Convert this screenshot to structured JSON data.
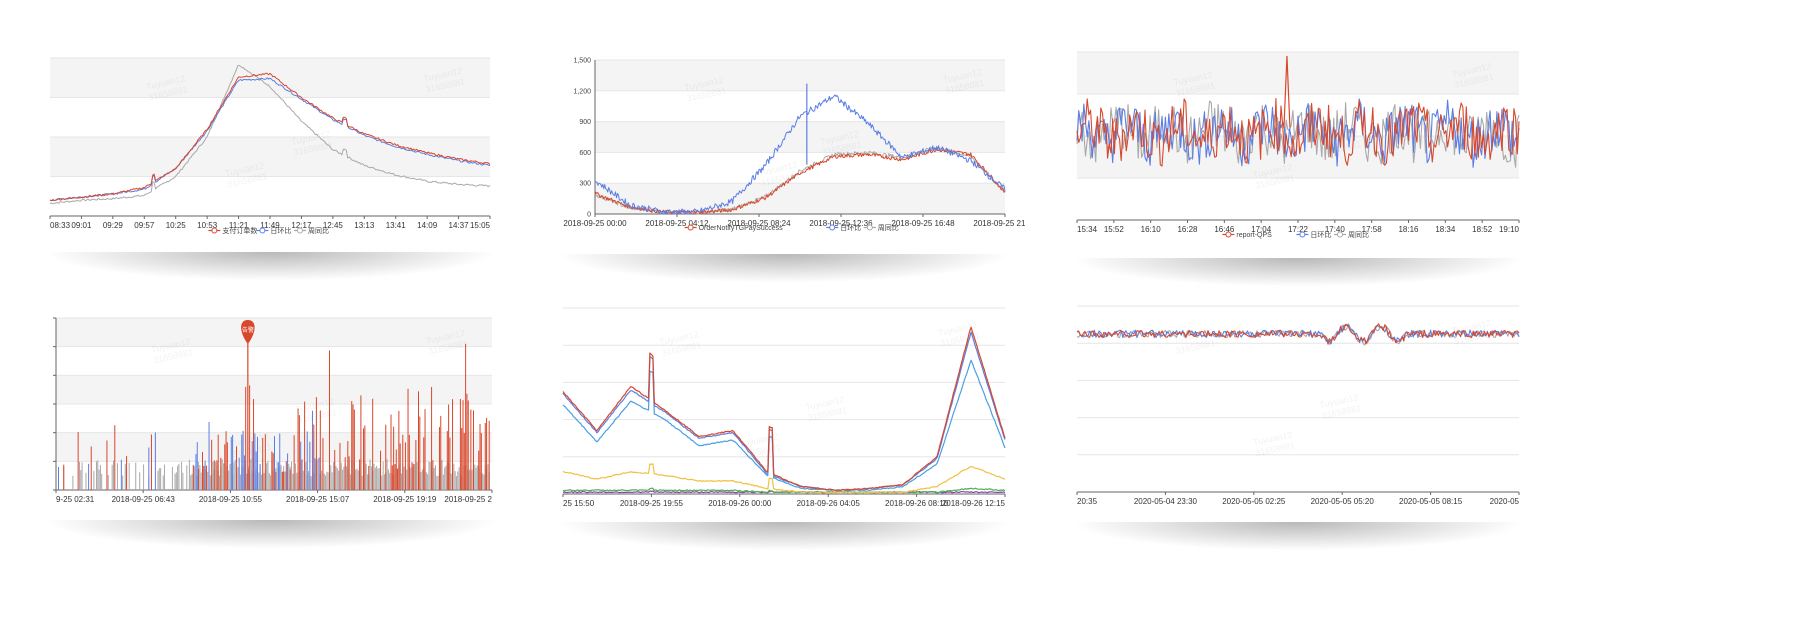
{
  "watermark": {
    "line1": "Tuyuan12",
    "line2": "31658881"
  },
  "series_colors": {
    "primary": "#d9472b",
    "week": "#5b7ee5",
    "day": "#a9a9a9",
    "extra_blue": "#4a9fe0",
    "extra_yellow": "#f0c040",
    "extra_green": "#4caf50",
    "extra_purple": "#8e44ad"
  },
  "chart_data": [
    {
      "type": "line",
      "title": "",
      "x_ticks": [
        "08:33",
        "09:01",
        "09:29",
        "09:57",
        "10:25",
        "10:53",
        "11:21",
        "11:49",
        "12:17",
        "12:45",
        "13:13",
        "13:41",
        "14:09",
        "14:37",
        "15:05"
      ],
      "legend": [
        "支付订单数",
        "日环比",
        "周同比"
      ],
      "y_ticks": [],
      "grid": "horizontal",
      "shape": "bell-peak-near-11:49",
      "series": [
        {
          "name": "支付订单数",
          "color": "primary",
          "level": [
            0.1,
            0.12,
            0.14,
            0.18,
            0.3,
            0.55,
            0.88,
            0.9,
            0.75,
            0.62,
            0.52,
            0.45,
            0.4,
            0.36,
            0.33
          ]
        },
        {
          "name": "日环比",
          "color": "week",
          "level": [
            0.1,
            0.12,
            0.14,
            0.17,
            0.3,
            0.54,
            0.86,
            0.87,
            0.74,
            0.61,
            0.51,
            0.44,
            0.39,
            0.35,
            0.32
          ]
        },
        {
          "name": "周同比",
          "color": "day",
          "level": [
            0.08,
            0.1,
            0.11,
            0.13,
            0.25,
            0.5,
            0.96,
            0.82,
            0.6,
            0.42,
            0.32,
            0.26,
            0.22,
            0.2,
            0.19
          ]
        }
      ]
    },
    {
      "type": "line",
      "title": "",
      "x_ticks": [
        "2018-09-25 00:00",
        "2018-09-25 04:12",
        "2018-09-25 08:24",
        "2018-09-25 12:36",
        "2018-09-25 16:48",
        "2018-09-25 21:00"
      ],
      "y_ticks": [
        "1,500",
        "1,200",
        "900",
        "600",
        "300",
        "0"
      ],
      "ylim": [
        0,
        1500
      ],
      "legend": [
        "OrderNotifyTGPaySuccess",
        "日环比",
        "周同比"
      ],
      "grid": "horizontal",
      "series": [
        {
          "name": "OrderNotifyTGPaySuccess",
          "color": "primary",
          "values": [
            200,
            70,
            20,
            15,
            40,
            160,
            400,
            560,
            580,
            530,
            630,
            580,
            210
          ]
        },
        {
          "name": "日环比",
          "color": "week",
          "values": [
            330,
            90,
            20,
            20,
            120,
            480,
            950,
            1150,
            880,
            550,
            650,
            520,
            240
          ]
        },
        {
          "name": "周同比",
          "color": "day",
          "values": [
            190,
            60,
            20,
            15,
            45,
            170,
            420,
            580,
            600,
            550,
            650,
            560,
            220
          ]
        }
      ],
      "spike": {
        "x_index": 6.2,
        "value": 1270
      }
    },
    {
      "type": "line",
      "title": "",
      "x_ticks": [
        "15:34",
        "15:52",
        "16:10",
        "16:28",
        "16:46",
        "17:04",
        "17:22",
        "17:40",
        "17:58",
        "18:16",
        "18:34",
        "18:52",
        "19:10"
      ],
      "legend": [
        "report-QPS",
        "日环比",
        "周同比"
      ],
      "grid": "horizontal",
      "shape": "noisy-band-with-spike-near-17:22",
      "spike_at": 0.475
    },
    {
      "type": "bar",
      "title": "",
      "x_ticks": [
        "9-25 02:31",
        "2018-09-25 06:43",
        "2018-09-25 10:55",
        "2018-09-25 15:07",
        "2018-09-25 19:19",
        "2018-09-25 2"
      ],
      "alert_label": "告警",
      "alert_position": 0.44,
      "grid": "horizontal",
      "shape": "sparse-spikes-dense-after-midpoint"
    },
    {
      "type": "line",
      "title": "",
      "x_ticks": [
        "25 15:50",
        "2018-09-25 19:55",
        "2018-09-26 00:00",
        "2018-09-26 04:05",
        "2018-09-26 08:10",
        "2018-09-26 12:15"
      ],
      "grid": "horizontal",
      "series": [
        {
          "color": "primary",
          "level": [
            0.55,
            0.34,
            0.58,
            0.45,
            0.31,
            0.34,
            0.12,
            0.04,
            0.02,
            0.03,
            0.05,
            0.2,
            0.9,
            0.3
          ]
        },
        {
          "color": "week",
          "level": [
            0.54,
            0.33,
            0.56,
            0.44,
            0.3,
            0.33,
            0.11,
            0.04,
            0.02,
            0.03,
            0.05,
            0.19,
            0.87,
            0.29
          ]
        },
        {
          "color": "extra_blue",
          "level": [
            0.48,
            0.28,
            0.5,
            0.4,
            0.26,
            0.29,
            0.1,
            0.03,
            0.02,
            0.02,
            0.04,
            0.16,
            0.72,
            0.25
          ]
        },
        {
          "color": "extra_yellow",
          "level": [
            0.12,
            0.08,
            0.12,
            0.1,
            0.07,
            0.07,
            0.03,
            0.01,
            0.01,
            0.01,
            0.01,
            0.04,
            0.15,
            0.08
          ]
        },
        {
          "color": "extra_green",
          "level": [
            0.02,
            0.02,
            0.02,
            0.02,
            0.02,
            0.02,
            0.01,
            0.01,
            0.01,
            0.01,
            0.01,
            0.01,
            0.03,
            0.02
          ]
        },
        {
          "color": "extra_purple",
          "level": [
            0.01,
            0.01,
            0.01,
            0.01,
            0.01,
            0.01,
            0.01,
            0.01,
            0.01,
            0.01,
            0.01,
            0.01,
            0.01,
            0.01
          ]
        }
      ],
      "spikes": [
        0.2,
        0.47
      ]
    },
    {
      "type": "line",
      "title": "",
      "x_ticks": [
        "20:35",
        "2020-05-04 23:30",
        "2020-05-05 02:25",
        "2020-05-05 05:20",
        "2020-05-05 08:15",
        "2020-05"
      ],
      "grid": "horizontal",
      "shape": "noisy-flat-band-near-top"
    }
  ]
}
